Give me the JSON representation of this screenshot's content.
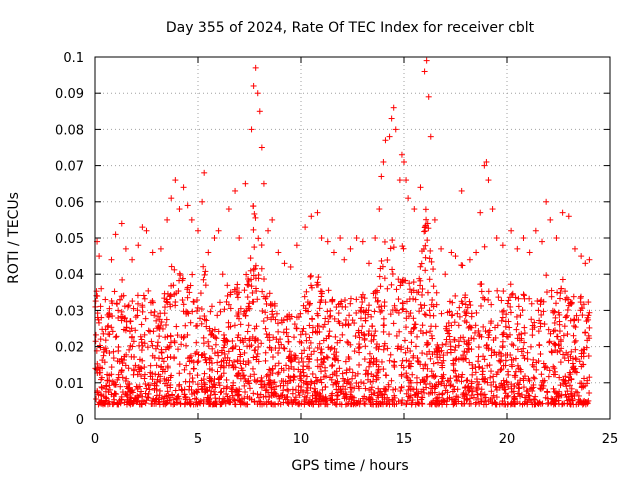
{
  "chart_data": {
    "type": "scatter",
    "title": "Day 355 of 2024, Rate Of TEC Index for receiver cblt",
    "xlabel": "GPS time / hours",
    "ylabel": "ROTI / TECUs",
    "xlim": [
      0,
      25
    ],
    "ylim": [
      0,
      0.1
    ],
    "xticks": [
      0,
      5,
      10,
      15,
      20,
      25
    ],
    "xtick_labels": [
      "0",
      "5",
      "10",
      "15",
      "20",
      "25"
    ],
    "yticks": [
      0,
      0.01,
      0.02,
      0.03,
      0.04,
      0.05,
      0.06,
      0.07,
      0.08,
      0.09,
      0.1
    ],
    "ytick_labels": [
      "0",
      "0.01",
      "0.02",
      "0.03",
      "0.04",
      "0.05",
      "0.06",
      "0.07",
      "0.08",
      "0.09",
      "0.1"
    ],
    "grid": true,
    "marker": "plus",
    "color": "#ff0000",
    "data_x_range": [
      0,
      24
    ],
    "series": [
      {
        "points": [
          [
            0.1,
            0.049
          ],
          [
            0.2,
            0.045
          ],
          [
            0.3,
            0.036
          ],
          [
            0.5,
            0.033
          ],
          [
            0.8,
            0.044
          ],
          [
            1.0,
            0.051
          ],
          [
            1.3,
            0.054
          ],
          [
            1.5,
            0.047
          ],
          [
            1.8,
            0.044
          ],
          [
            2.1,
            0.048
          ],
          [
            2.3,
            0.053
          ],
          [
            2.5,
            0.052
          ],
          [
            2.8,
            0.046
          ],
          [
            3.2,
            0.047
          ],
          [
            3.5,
            0.055
          ],
          [
            3.7,
            0.061
          ],
          [
            3.9,
            0.066
          ],
          [
            4.1,
            0.058
          ],
          [
            4.3,
            0.064
          ],
          [
            4.5,
            0.059
          ],
          [
            4.7,
            0.055
          ],
          [
            5.0,
            0.052
          ],
          [
            5.2,
            0.06
          ],
          [
            5.3,
            0.068
          ],
          [
            5.5,
            0.046
          ],
          [
            5.8,
            0.05
          ],
          [
            6.0,
            0.052
          ],
          [
            6.2,
            0.04
          ],
          [
            6.5,
            0.058
          ],
          [
            6.8,
            0.063
          ],
          [
            7.0,
            0.05
          ],
          [
            7.3,
            0.065
          ],
          [
            7.6,
            0.08
          ],
          [
            7.7,
            0.092
          ],
          [
            7.8,
            0.097
          ],
          [
            7.9,
            0.09
          ],
          [
            8.0,
            0.085
          ],
          [
            8.1,
            0.075
          ],
          [
            8.2,
            0.065
          ],
          [
            8.4,
            0.052
          ],
          [
            8.6,
            0.055
          ],
          [
            8.9,
            0.046
          ],
          [
            9.2,
            0.043
          ],
          [
            9.5,
            0.042
          ],
          [
            9.8,
            0.048
          ],
          [
            10.2,
            0.053
          ],
          [
            10.5,
            0.056
          ],
          [
            10.8,
            0.057
          ],
          [
            11.0,
            0.05
          ],
          [
            11.3,
            0.049
          ],
          [
            11.6,
            0.046
          ],
          [
            11.9,
            0.05
          ],
          [
            12.1,
            0.044
          ],
          [
            12.4,
            0.047
          ],
          [
            12.7,
            0.05
          ],
          [
            13.0,
            0.049
          ],
          [
            13.3,
            0.043
          ],
          [
            13.6,
            0.05
          ],
          [
            13.8,
            0.058
          ],
          [
            13.9,
            0.067
          ],
          [
            14.0,
            0.071
          ],
          [
            14.1,
            0.077
          ],
          [
            14.3,
            0.078
          ],
          [
            14.4,
            0.083
          ],
          [
            14.5,
            0.086
          ],
          [
            14.6,
            0.08
          ],
          [
            14.8,
            0.066
          ],
          [
            14.9,
            0.073
          ],
          [
            15.0,
            0.071
          ],
          [
            15.1,
            0.066
          ],
          [
            15.2,
            0.061
          ],
          [
            15.5,
            0.058
          ],
          [
            15.8,
            0.064
          ],
          [
            16.0,
            0.096
          ],
          [
            16.1,
            0.099
          ],
          [
            16.2,
            0.089
          ],
          [
            16.3,
            0.078
          ],
          [
            16.5,
            0.055
          ],
          [
            16.8,
            0.047
          ],
          [
            17.0,
            0.04
          ],
          [
            17.3,
            0.046
          ],
          [
            17.5,
            0.045
          ],
          [
            17.8,
            0.063
          ],
          [
            18.2,
            0.044
          ],
          [
            18.5,
            0.046
          ],
          [
            18.7,
            0.057
          ],
          [
            18.9,
            0.07
          ],
          [
            19.0,
            0.071
          ],
          [
            19.1,
            0.066
          ],
          [
            19.3,
            0.058
          ],
          [
            19.5,
            0.05
          ],
          [
            19.8,
            0.048
          ],
          [
            20.2,
            0.052
          ],
          [
            20.5,
            0.047
          ],
          [
            20.8,
            0.05
          ],
          [
            21.1,
            0.046
          ],
          [
            21.4,
            0.052
          ],
          [
            21.7,
            0.049
          ],
          [
            21.9,
            0.06
          ],
          [
            22.1,
            0.055
          ],
          [
            22.4,
            0.05
          ],
          [
            22.7,
            0.057
          ],
          [
            23.0,
            0.056
          ],
          [
            23.3,
            0.047
          ],
          [
            23.6,
            0.045
          ],
          [
            23.8,
            0.043
          ],
          [
            24.0,
            0.044
          ]
        ]
      }
    ]
  }
}
